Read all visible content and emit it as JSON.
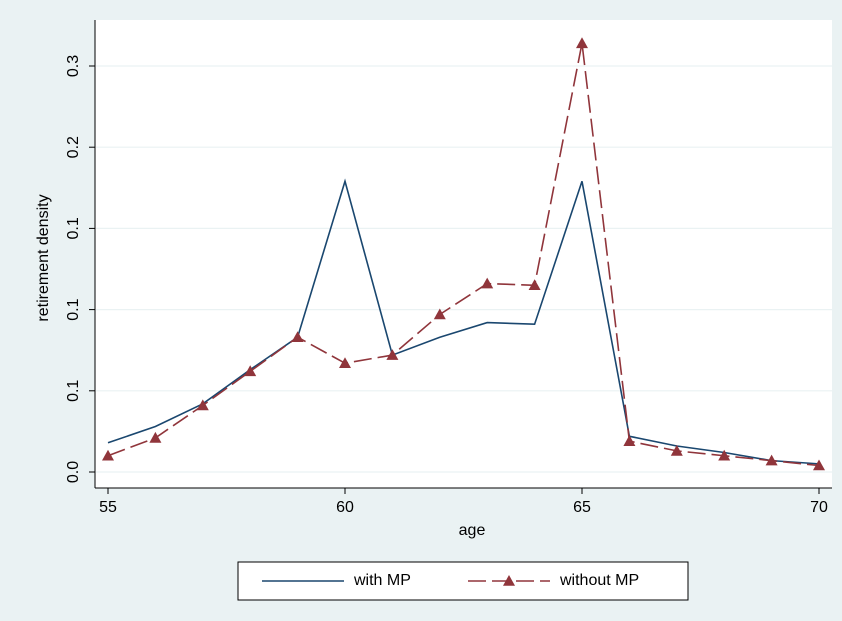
{
  "chart_data": {
    "type": "line",
    "x": [
      55,
      56,
      57,
      58,
      59,
      60,
      61,
      62,
      63,
      64,
      65,
      66,
      67,
      68,
      69,
      70
    ],
    "series": [
      {
        "name": "with MP",
        "color": "#1a476f",
        "dash": false,
        "marker": "none",
        "values": [
          0.018,
          0.028,
          0.042,
          0.063,
          0.083,
          0.179,
          0.072,
          0.083,
          0.092,
          0.091,
          0.179,
          0.022,
          0.016,
          0.012,
          0.007,
          0.005
        ]
      },
      {
        "name": "without MP",
        "color": "#90353b",
        "dash": true,
        "marker": "triangle",
        "values": [
          0.01,
          0.021,
          0.041,
          0.062,
          0.083,
          0.067,
          0.072,
          0.097,
          0.116,
          0.115,
          0.264,
          0.019,
          0.013,
          0.01,
          0.007,
          0.004
        ]
      }
    ],
    "xlabel": "age",
    "ylabel": "retirement density",
    "xlim": [
      55,
      70
    ],
    "xticks": [
      55,
      60,
      65,
      70
    ],
    "ylim": [
      0,
      0.25
    ],
    "yticks": [
      {
        "value": 0,
        "label": "0.0"
      },
      {
        "value": 0.05,
        "label": "0.1"
      },
      {
        "value": 0.1,
        "label": "0.1"
      },
      {
        "value": 0.15,
        "label": "0.1"
      },
      {
        "value": 0.2,
        "label": "0.2"
      },
      {
        "value": 0.25,
        "label": "0.3"
      }
    ],
    "grid": true,
    "legend": "bottom"
  }
}
